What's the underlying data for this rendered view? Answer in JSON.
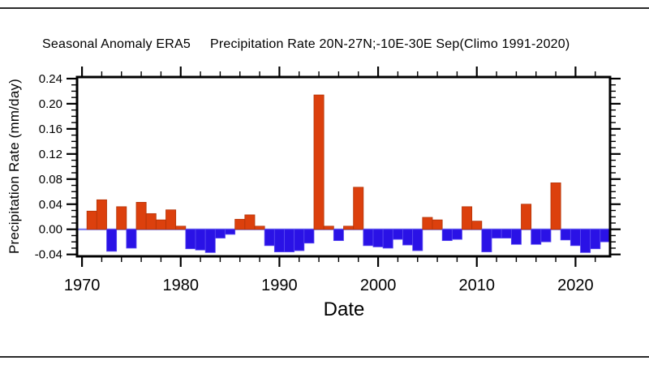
{
  "title": {
    "left": "Seasonal Anomaly ERA5",
    "right": "Precipitation Rate 20N-27N;-10E-30E Sep(Climo 1991-2020)"
  },
  "colors": {
    "bar_positive": "#dc400d",
    "bar_positive_edge": "#b33408",
    "bar_negative": "#2a12e6",
    "bar_negative_edge": "#5b4cf0",
    "zero_line": "#7474ea",
    "axis": "#000000",
    "background": "#ffffff",
    "screen_edge_line": "#2a2a2a"
  },
  "chart_data": {
    "type": "bar",
    "title": "Seasonal Anomaly ERA5  Precipitation Rate 20N-27N;-10E-30E Sep(Climo 1991-2020)",
    "xlabel": "Date",
    "ylabel": "Precipitation Rate (mm/day)",
    "grid": false,
    "legend": null,
    "xlim": [
      1969.5,
      2023.5
    ],
    "ylim": [
      -0.043,
      0.2425
    ],
    "x": [
      1970,
      1971,
      1972,
      1973,
      1974,
      1975,
      1976,
      1977,
      1978,
      1979,
      1980,
      1981,
      1982,
      1983,
      1984,
      1985,
      1986,
      1987,
      1988,
      1989,
      1990,
      1991,
      1992,
      1993,
      1994,
      1995,
      1996,
      1997,
      1998,
      1999,
      2000,
      2001,
      2002,
      2003,
      2004,
      2005,
      2006,
      2007,
      2008,
      2009,
      2010,
      2011,
      2012,
      2013,
      2014,
      2015,
      2016,
      2017,
      2018,
      2019,
      2020,
      2021,
      2022,
      2023
    ],
    "values": [
      0.0,
      0.029,
      0.047,
      -0.035,
      0.036,
      -0.03,
      0.043,
      0.025,
      0.015,
      0.031,
      0.005,
      -0.031,
      -0.033,
      -0.037,
      -0.014,
      -0.008,
      0.016,
      0.023,
      0.005,
      -0.026,
      -0.036,
      -0.036,
      -0.034,
      -0.022,
      0.214,
      0.005,
      -0.018,
      0.005,
      0.067,
      -0.026,
      -0.028,
      -0.03,
      -0.016,
      -0.025,
      -0.034,
      0.019,
      0.015,
      -0.018,
      -0.016,
      0.036,
      0.013,
      -0.036,
      -0.014,
      -0.014,
      -0.024,
      0.04,
      -0.024,
      -0.02,
      0.074,
      -0.017,
      -0.026,
      -0.037,
      -0.031,
      -0.02
    ],
    "x_ticks": {
      "values": [
        1970,
        1980,
        1990,
        2000,
        2010,
        2020
      ],
      "labels": [
        "1970",
        "1980",
        "1990",
        "2000",
        "2010",
        "2020"
      ],
      "minor_step": 2
    },
    "y_ticks": {
      "values": [
        -0.04,
        0.0,
        0.04,
        0.08,
        0.12,
        0.16,
        0.2,
        0.24
      ],
      "labels": [
        "-0.04",
        "0.00",
        "0.04",
        "0.08",
        "0.12",
        "0.16",
        "0.20",
        "0.24"
      ],
      "minor_step": 0.01
    }
  }
}
